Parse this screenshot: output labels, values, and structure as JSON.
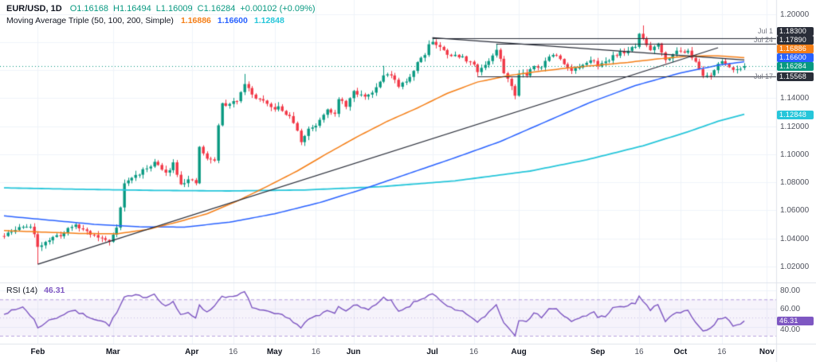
{
  "header": {
    "symbol": "EUR/USD, 1D",
    "open": "O1.16168",
    "high": "H1.16494",
    "low": "L1.16009",
    "close": "C1.16284",
    "change": "+0.00102 (+0.09%)",
    "ma_label": "Moving Average Triple (50, 100, 200, Simple)",
    "ma50_value": "1.16886",
    "ma100_value": "1.16600",
    "ma200_value": "1.12848"
  },
  "rsi_header": {
    "label": "RSI (14)",
    "value": "46.31"
  },
  "colors": {
    "up": "#089981",
    "down": "#f23645",
    "sma50": "#f57f17",
    "sma100": "#2962ff",
    "sma200": "#26c6da",
    "rsi": "#7e57c2",
    "trendline": "#2a2e39",
    "grid": "#f0f3fa",
    "axis_border": "#e0e3eb",
    "text": "#50535e",
    "current_price": "#089981",
    "note_text": "#787b86",
    "rsi_band_fill": "rgba(126,87,194,0.07)",
    "rsi_band_line": "rgba(126,87,194,0.55)",
    "rsi_mid_line": "rgba(126,87,194,0.35)"
  },
  "price_axis": {
    "ticks": [
      {
        "label": "1.20000",
        "value": 1.2
      },
      {
        "label": "1.14000",
        "value": 1.14
      },
      {
        "label": "1.12000",
        "value": 1.12
      },
      {
        "label": "1.10000",
        "value": 1.1
      },
      {
        "label": "1.08000",
        "value": 1.08
      },
      {
        "label": "1.06000",
        "value": 1.06
      },
      {
        "label": "1.04000",
        "value": 1.04
      },
      {
        "label": "1.02000",
        "value": 1.02
      }
    ],
    "badges": [
      {
        "label": "1.18300",
        "value": 1.183,
        "bg": "#2a2e39",
        "note": "Jul 1"
      },
      {
        "label": "1.17890",
        "value": 1.1789,
        "bg": "#2a2e39",
        "note": "Jul 24"
      },
      {
        "label": "1.16886",
        "value": 1.16886,
        "bg": "#f57f17"
      },
      {
        "label": "1.16600",
        "value": 1.166,
        "bg": "#2962ff"
      },
      {
        "label": "1.16284",
        "value": 1.16284,
        "bg": "#089981"
      },
      {
        "label": "1.15568",
        "value": 1.15568,
        "bg": "#2a2e39",
        "note": "Jul 17"
      },
      {
        "label": "1.12848",
        "value": 1.12848,
        "bg": "#26c6da"
      }
    ]
  },
  "time_axis": {
    "labels": [
      {
        "label": "Feb",
        "i": 9,
        "minor": false
      },
      {
        "label": "Mar",
        "i": 29,
        "minor": false
      },
      {
        "label": "Apr",
        "i": 50,
        "minor": false
      },
      {
        "label": "16",
        "i": 61,
        "minor": true
      },
      {
        "label": "May",
        "i": 72,
        "minor": false
      },
      {
        "label": "16",
        "i": 83,
        "minor": true
      },
      {
        "label": "Jun",
        "i": 93,
        "minor": false
      },
      {
        "label": "Jul",
        "i": 114,
        "minor": false
      },
      {
        "label": "16",
        "i": 125,
        "minor": true
      },
      {
        "label": "Aug",
        "i": 137,
        "minor": false
      },
      {
        "label": "Sep",
        "i": 158,
        "minor": false
      },
      {
        "label": "16",
        "i": 169,
        "minor": true
      },
      {
        "label": "Oct",
        "i": 180,
        "minor": false
      },
      {
        "label": "16",
        "i": 191,
        "minor": true
      },
      {
        "label": "Nov",
        "i": 203,
        "minor": false
      }
    ]
  },
  "rsi_axis": {
    "ticks": [
      {
        "label": "80.00",
        "value": 80
      },
      {
        "label": "60.00",
        "value": 60
      },
      {
        "label": "40.00",
        "value": 40
      }
    ],
    "badge": {
      "label": "46.31",
      "value": 46.31,
      "bg": "#7e57c2"
    }
  },
  "chart_data": {
    "type": "candlestick",
    "symbol": "EUR/USD",
    "interval": "1D",
    "legend_ohlc": {
      "o": 1.16168,
      "h": 1.16494,
      "l": 1.16009,
      "c": 1.16284,
      "change": 0.00102,
      "change_pct": 0.09
    },
    "y_axis": {
      "min": 1.0125,
      "max": 1.2055,
      "grid_step": 0.02,
      "grid_from": 1.02,
      "grid_to": 1.2
    },
    "current_price": 1.16284,
    "candles": {
      "count": 198,
      "seed": 11,
      "close_keyframes": [
        [
          0,
          1.0416
        ],
        [
          3,
          1.046
        ],
        [
          5,
          1.0491
        ],
        [
          7,
          1.048
        ],
        [
          8,
          1.042
        ],
        [
          9,
          1.0344
        ],
        [
          11,
          1.038
        ],
        [
          13,
          1.04
        ],
        [
          16,
          1.044
        ],
        [
          18,
          1.0494
        ],
        [
          21,
          1.0466
        ],
        [
          24,
          1.042
        ],
        [
          28,
          1.0375
        ],
        [
          30,
          1.0488
        ],
        [
          31,
          1.062
        ],
        [
          32,
          1.0789
        ],
        [
          34,
          1.0832
        ],
        [
          37,
          1.088
        ],
        [
          40,
          1.0946
        ],
        [
          43,
          1.086
        ],
        [
          45,
          1.094
        ],
        [
          47,
          1.0795
        ],
        [
          49,
          1.0815
        ],
        [
          51,
          1.079
        ],
        [
          52,
          1.1052
        ],
        [
          54,
          1.0962
        ],
        [
          56,
          1.096
        ],
        [
          57,
          1.1201
        ],
        [
          58,
          1.136
        ],
        [
          60,
          1.135
        ],
        [
          62,
          1.139
        ],
        [
          64,
          1.1512
        ],
        [
          66,
          1.142
        ],
        [
          68,
          1.139
        ],
        [
          71,
          1.1329
        ],
        [
          73,
          1.133
        ],
        [
          75,
          1.129
        ],
        [
          77,
          1.123
        ],
        [
          79,
          1.1088
        ],
        [
          81,
          1.118
        ],
        [
          83,
          1.121
        ],
        [
          86,
          1.1333
        ],
        [
          88,
          1.128
        ],
        [
          89,
          1.1388
        ],
        [
          91,
          1.135
        ],
        [
          93,
          1.144
        ],
        [
          95,
          1.1418
        ],
        [
          97,
          1.142
        ],
        [
          99,
          1.148
        ],
        [
          101,
          1.1576
        ],
        [
          103,
          1.1556
        ],
        [
          105,
          1.148
        ],
        [
          107,
          1.152
        ],
        [
          109,
          1.16
        ],
        [
          110,
          1.166
        ],
        [
          112,
          1.172
        ],
        [
          113,
          1.1787
        ],
        [
          114,
          1.1806
        ],
        [
          116,
          1.176
        ],
        [
          118,
          1.172
        ],
        [
          120,
          1.17
        ],
        [
          122,
          1.169
        ],
        [
          124,
          1.166
        ],
        [
          126,
          1.1597
        ],
        [
          128,
          1.164
        ],
        [
          130,
          1.17
        ],
        [
          131,
          1.1746
        ],
        [
          133,
          1.159
        ],
        [
          135,
          1.148
        ],
        [
          136,
          1.142
        ],
        [
          137,
          1.1588
        ],
        [
          139,
          1.157
        ],
        [
          141,
          1.164
        ],
        [
          143,
          1.162
        ],
        [
          145,
          1.1705
        ],
        [
          147,
          1.17
        ],
        [
          149,
          1.165
        ],
        [
          151,
          1.16
        ],
        [
          153,
          1.162
        ],
        [
          155,
          1.164
        ],
        [
          157,
          1.168
        ],
        [
          158,
          1.164
        ],
        [
          160,
          1.165
        ],
        [
          162,
          1.1707
        ],
        [
          165,
          1.173
        ],
        [
          168,
          1.1763
        ],
        [
          169,
          1.1866
        ],
        [
          170,
          1.1815
        ],
        [
          172,
          1.1745
        ],
        [
          174,
          1.18
        ],
        [
          176,
          1.1667
        ],
        [
          178,
          1.1727
        ],
        [
          180,
          1.173
        ],
        [
          182,
          1.1745
        ],
        [
          184,
          1.165
        ],
        [
          186,
          1.1562
        ],
        [
          188,
          1.157
        ],
        [
          190,
          1.1646
        ],
        [
          192,
          1.1655
        ],
        [
          194,
          1.16
        ],
        [
          196,
          1.162
        ],
        [
          197,
          1.16284
        ]
      ],
      "wick_overrides": [
        [
          9,
          "l",
          1.0215
        ],
        [
          64,
          "h",
          1.1573
        ],
        [
          79,
          "l",
          1.1065
        ],
        [
          101,
          "h",
          1.1631
        ],
        [
          114,
          "h",
          1.183
        ],
        [
          126,
          "l",
          1.15568
        ],
        [
          131,
          "h",
          1.1789
        ],
        [
          136,
          "l",
          1.1392
        ],
        [
          170,
          "h",
          1.1919
        ],
        [
          186,
          "l",
          1.1542
        ]
      ],
      "last": {
        "o": 1.16168,
        "h": 1.16494,
        "l": 1.16009,
        "c": 1.16284
      }
    },
    "overlays": {
      "sma50": {
        "period": 50,
        "last": 1.16886,
        "keyframes": [
          [
            0,
            1.0455
          ],
          [
            10,
            1.0445
          ],
          [
            20,
            1.0435
          ],
          [
            30,
            1.0432
          ],
          [
            38,
            1.0462
          ],
          [
            46,
            1.0515
          ],
          [
            54,
            1.0575
          ],
          [
            62,
            1.0665
          ],
          [
            70,
            1.077
          ],
          [
            78,
            1.088
          ],
          [
            86,
            1.1005
          ],
          [
            94,
            1.1125
          ],
          [
            102,
            1.1235
          ],
          [
            110,
            1.133
          ],
          [
            118,
            1.1435
          ],
          [
            126,
            1.1515
          ],
          [
            134,
            1.156
          ],
          [
            142,
            1.159
          ],
          [
            150,
            1.1615
          ],
          [
            158,
            1.1635
          ],
          [
            166,
            1.1655
          ],
          [
            174,
            1.168
          ],
          [
            182,
            1.17
          ],
          [
            190,
            1.1702
          ],
          [
            197,
            1.16886
          ]
        ]
      },
      "sma100": {
        "period": 100,
        "last": 1.166,
        "keyframes": [
          [
            0,
            1.056
          ],
          [
            12,
            1.053
          ],
          [
            24,
            1.05
          ],
          [
            36,
            1.0482
          ],
          [
            48,
            1.048
          ],
          [
            60,
            1.0515
          ],
          [
            72,
            1.0575
          ],
          [
            84,
            1.0655
          ],
          [
            96,
            1.0755
          ],
          [
            108,
            1.0865
          ],
          [
            120,
            1.0975
          ],
          [
            132,
            1.109
          ],
          [
            144,
            1.123
          ],
          [
            156,
            1.137
          ],
          [
            168,
            1.149
          ],
          [
            180,
            1.158
          ],
          [
            190,
            1.1635
          ],
          [
            197,
            1.166
          ]
        ]
      },
      "sma200": {
        "period": 200,
        "last": 1.12848,
        "keyframes": [
          [
            0,
            1.076
          ],
          [
            20,
            1.075
          ],
          [
            40,
            1.0742
          ],
          [
            60,
            1.0738
          ],
          [
            80,
            1.0745
          ],
          [
            100,
            1.0768
          ],
          [
            120,
            1.081
          ],
          [
            140,
            1.088
          ],
          [
            155,
            1.096
          ],
          [
            170,
            1.106
          ],
          [
            182,
            1.116
          ],
          [
            190,
            1.1235
          ],
          [
            197,
            1.12848
          ]
        ]
      }
    },
    "trendlines": [
      {
        "i1": 9,
        "p1": 1.0215,
        "i2": 190,
        "p2": 1.176
      },
      {
        "i1": 114,
        "p1": 1.1832,
        "i2": 197,
        "p2": 1.1672
      }
    ],
    "horizontal_levels": [
      {
        "price": 1.183,
        "from_i": 114,
        "note": "Jul 1"
      },
      {
        "price": 1.1789,
        "from_i": 131,
        "note": "Jul 24"
      },
      {
        "price": 1.15568,
        "from_i": 126,
        "note": "Jul 17"
      }
    ],
    "rsi_pane": {
      "period": 14,
      "current": 46.31,
      "seed": 7,
      "scale": [
        23,
        86
      ],
      "band": [
        30,
        70
      ],
      "mid": 50,
      "keyframes": [
        [
          0,
          55
        ],
        [
          3,
          58
        ],
        [
          5,
          62
        ],
        [
          8,
          48
        ],
        [
          9,
          38
        ],
        [
          11,
          45
        ],
        [
          14,
          50
        ],
        [
          18,
          58
        ],
        [
          22,
          52
        ],
        [
          26,
          46
        ],
        [
          28,
          42
        ],
        [
          30,
          55
        ],
        [
          32,
          72
        ],
        [
          35,
          74
        ],
        [
          38,
          73
        ],
        [
          40,
          76
        ],
        [
          43,
          62
        ],
        [
          45,
          68
        ],
        [
          47,
          52
        ],
        [
          49,
          55
        ],
        [
          51,
          50
        ],
        [
          52,
          65
        ],
        [
          54,
          55
        ],
        [
          57,
          68
        ],
        [
          58,
          74
        ],
        [
          61,
          72
        ],
        [
          64,
          78
        ],
        [
          66,
          62
        ],
        [
          68,
          58
        ],
        [
          71,
          55
        ],
        [
          74,
          52
        ],
        [
          77,
          46
        ],
        [
          79,
          39
        ],
        [
          81,
          48
        ],
        [
          84,
          52
        ],
        [
          86,
          58
        ],
        [
          88,
          54
        ],
        [
          89,
          62
        ],
        [
          91,
          58
        ],
        [
          93,
          65
        ],
        [
          95,
          60
        ],
        [
          97,
          60
        ],
        [
          99,
          64
        ],
        [
          101,
          71
        ],
        [
          103,
          68
        ],
        [
          105,
          56
        ],
        [
          107,
          60
        ],
        [
          109,
          66
        ],
        [
          111,
          70
        ],
        [
          113,
          75
        ],
        [
          114,
          77
        ],
        [
          116,
          68
        ],
        [
          118,
          62
        ],
        [
          120,
          58
        ],
        [
          122,
          56
        ],
        [
          124,
          52
        ],
        [
          126,
          44
        ],
        [
          128,
          52
        ],
        [
          130,
          60
        ],
        [
          131,
          64
        ],
        [
          133,
          45
        ],
        [
          135,
          35
        ],
        [
          136,
          31
        ],
        [
          137,
          48
        ],
        [
          139,
          47
        ],
        [
          141,
          54
        ],
        [
          143,
          51
        ],
        [
          145,
          60
        ],
        [
          147,
          59
        ],
        [
          149,
          52
        ],
        [
          151,
          45
        ],
        [
          153,
          49
        ],
        [
          155,
          52
        ],
        [
          157,
          57
        ],
        [
          158,
          50
        ],
        [
          160,
          52
        ],
        [
          162,
          60
        ],
        [
          165,
          62
        ],
        [
          168,
          66
        ],
        [
          169,
          74
        ],
        [
          170,
          68
        ],
        [
          172,
          58
        ],
        [
          174,
          64
        ],
        [
          176,
          46
        ],
        [
          178,
          54
        ],
        [
          180,
          55
        ],
        [
          182,
          57
        ],
        [
          184,
          45
        ],
        [
          186,
          34
        ],
        [
          188,
          38
        ],
        [
          190,
          48
        ],
        [
          192,
          50
        ],
        [
          194,
          41
        ],
        [
          196,
          44
        ],
        [
          197,
          46.31
        ]
      ]
    }
  }
}
